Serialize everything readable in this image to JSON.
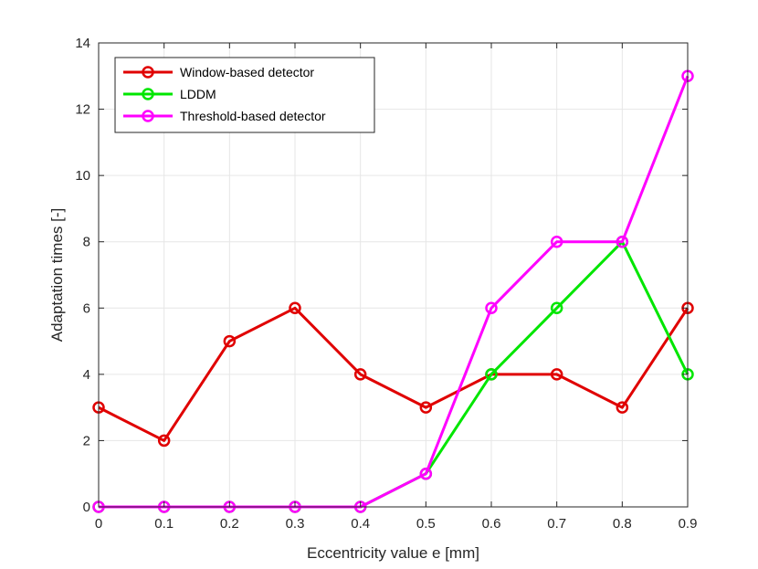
{
  "chart_data": {
    "type": "line",
    "xlabel": "Eccentricity value e [mm]",
    "ylabel": "Adaptation times [-]",
    "xlim": [
      0,
      0.9
    ],
    "ylim": [
      0,
      14
    ],
    "xticks": [
      "0",
      "0.1",
      "0.2",
      "0.3",
      "0.4",
      "0.5",
      "0.6",
      "0.7",
      "0.8",
      "0.9"
    ],
    "yticks": [
      "0",
      "2",
      "4",
      "6",
      "8",
      "10",
      "12",
      "14"
    ],
    "grid": true,
    "legend_position": "top-left",
    "x": [
      0,
      0.1,
      0.2,
      0.3,
      0.4,
      0.5,
      0.6,
      0.7,
      0.8,
      0.9
    ],
    "series": [
      {
        "name": "Window-based detector",
        "color": "#e00000",
        "values": [
          3,
          2,
          5,
          6,
          4,
          3,
          4,
          4,
          3,
          6
        ]
      },
      {
        "name": "LDDM",
        "color": "#00e600",
        "values": [
          0,
          0,
          0,
          0,
          0,
          1,
          4,
          6,
          8,
          4
        ]
      },
      {
        "name": "Threshold-based detector",
        "color": "#ff00ff",
        "values": [
          0,
          0,
          0,
          0,
          0,
          1,
          6,
          8,
          8,
          13
        ]
      }
    ]
  }
}
